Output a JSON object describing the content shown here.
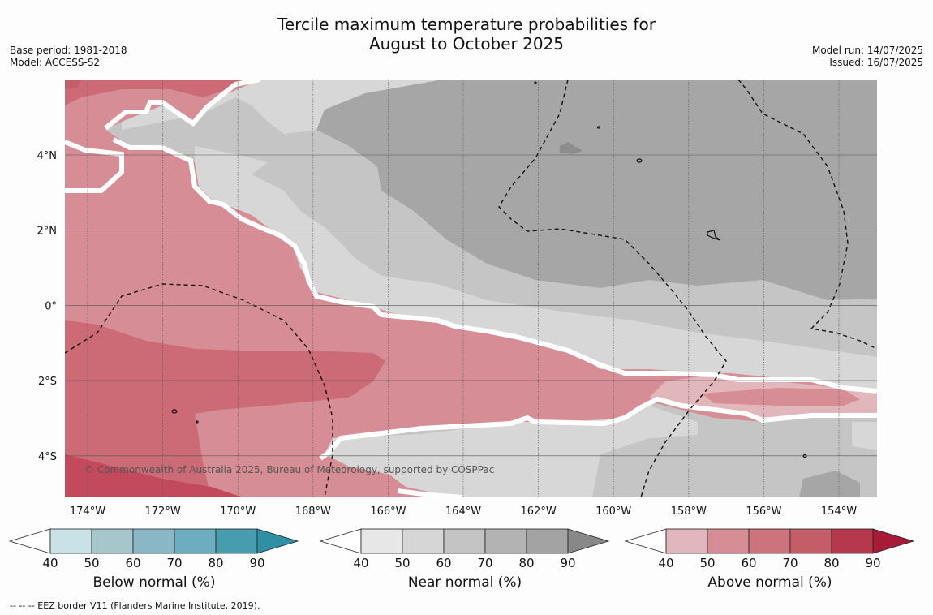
{
  "title_line1": "Tercile maximum temperature probabilities for",
  "title_line2": "August to October 2025",
  "base_period": "Base period: 1981-2018",
  "model": "Model: ACCESS-S2",
  "model_run": "Model run: 14/07/2025",
  "issued": "Issued: 16/07/2025",
  "copyright": "© Commonwealth of Australia 2025, Bureau of Meteorology, supported by COSPPac",
  "lon_labels": [
    "174°W",
    "172°W",
    "170°W",
    "168°W",
    "166°W",
    "164°W",
    "162°W",
    "160°W",
    "158°W",
    "156°W",
    "154°W"
  ],
  "lat_labels": [
    "4°N",
    "2°N",
    "0°",
    "2°S",
    "4°S"
  ],
  "colorbars": [
    {
      "name": "Below normal (%)",
      "ticks": [
        "40",
        "50",
        "60",
        "70",
        "80",
        "90"
      ],
      "colors": [
        "#c9e2e8",
        "#a7c6cc",
        "#8ab7c5",
        "#6caebf",
        "#479caf",
        "#2e8fa5"
      ]
    },
    {
      "name": "Near normal (%)",
      "ticks": [
        "40",
        "50",
        "60",
        "70",
        "80",
        "90"
      ],
      "colors": [
        "#e7e7e7",
        "#d6d6d6",
        "#c4c4c4",
        "#b3b3b3",
        "#a3a3a3",
        "#888888"
      ]
    },
    {
      "name": "Above normal (%)",
      "ticks": [
        "40",
        "50",
        "60",
        "70",
        "80",
        "90"
      ],
      "colors": [
        "#e2b7bc",
        "#d68d95",
        "#cc737c",
        "#c35d67",
        "#b6384d",
        "#a81b38"
      ]
    }
  ],
  "footnote": "--  --  -- EEZ border V11 (Flanders Marine Institute, 2019)."
}
